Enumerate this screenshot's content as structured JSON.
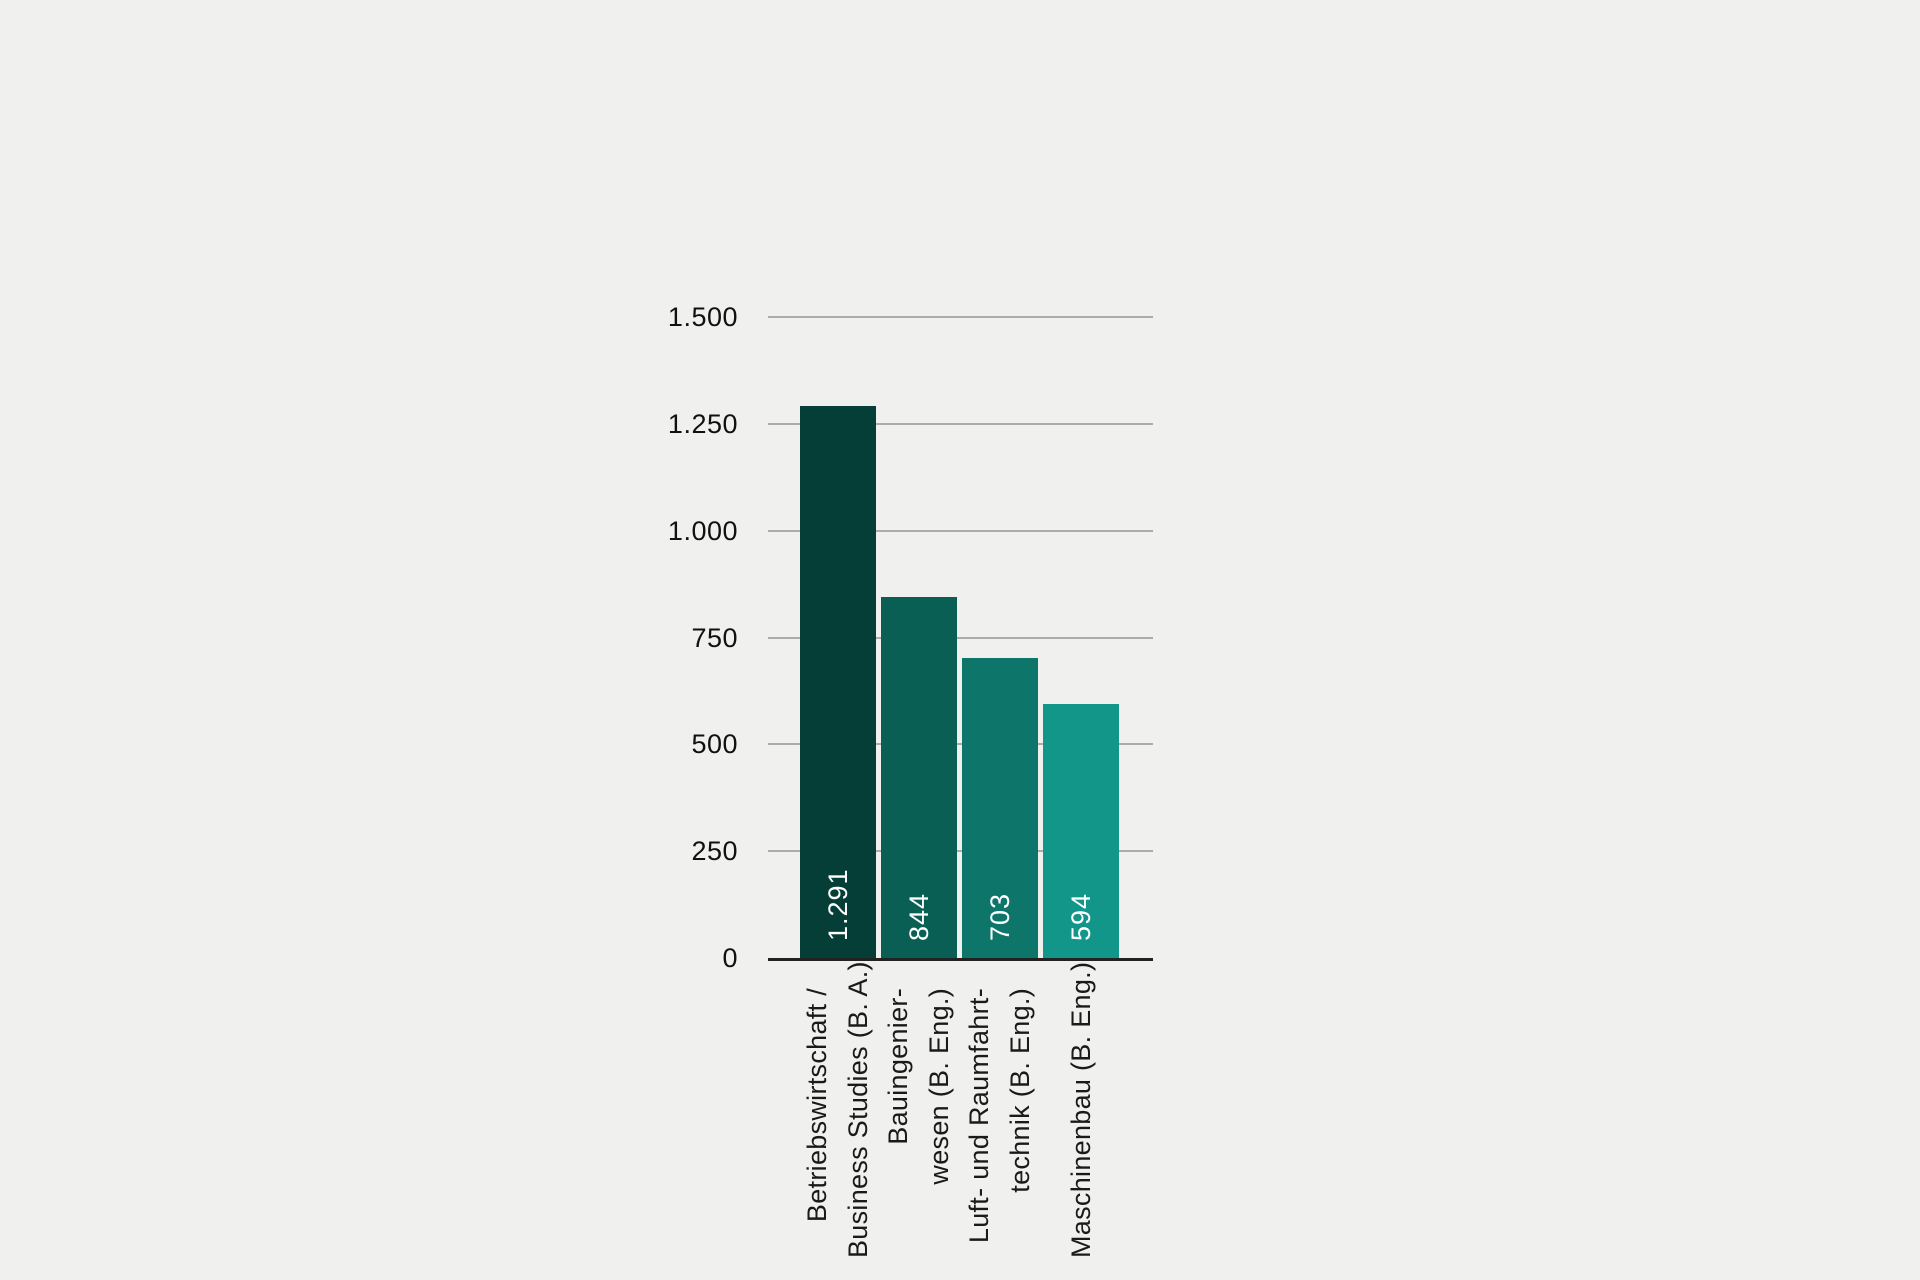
{
  "canvas": {
    "background_color": "#F0F0EF"
  },
  "chart_data": {
    "type": "bar",
    "title": "",
    "xlabel": "",
    "ylabel": "",
    "categories": [
      "Betriebswirtschaft / Business Studies (B. A.)",
      "Bauingenier-wesen (B. Eng.)",
      "Luft- und Raumfahrt-technik (B. Eng.)",
      "Maschinenbau (B. Eng.)"
    ],
    "category_label_lines": [
      [
        "Betriebswirtschaft /",
        "Business Studies (B. A.)"
      ],
      [
        "Bauingenier-",
        "wesen (B. Eng.)"
      ],
      [
        "Luft- und Raumfahrt-",
        "technik (B. Eng.)"
      ],
      [
        "Maschinenbau (B. Eng.)"
      ]
    ],
    "values": [
      1291,
      844,
      703,
      594
    ],
    "value_labels": [
      "1.291",
      "844",
      "703",
      "594"
    ],
    "bar_colors": [
      "#053E37",
      "#0A5F55",
      "#0E756B",
      "#119689"
    ],
    "value_label_color": "#FFFFFF",
    "ylim": [
      0,
      1500
    ],
    "y_ticks": [
      {
        "value": 1500,
        "label": "1.500"
      },
      {
        "value": 1250,
        "label": "1.250"
      },
      {
        "value": 1000,
        "label": "1.000"
      },
      {
        "value": 750,
        "label": "750"
      },
      {
        "value": 500,
        "label": "500"
      },
      {
        "value": 250,
        "label": "250"
      },
      {
        "value": 0,
        "label": "0"
      }
    ],
    "grid": true,
    "grid_color": "#ACACAC",
    "axis_color": "#222222",
    "tick_text_color": "#111111",
    "legend": null,
    "bar_value_labels_position": "inside-bottom-rotated",
    "category_labels_orientation": "rotated-90-ccw"
  }
}
